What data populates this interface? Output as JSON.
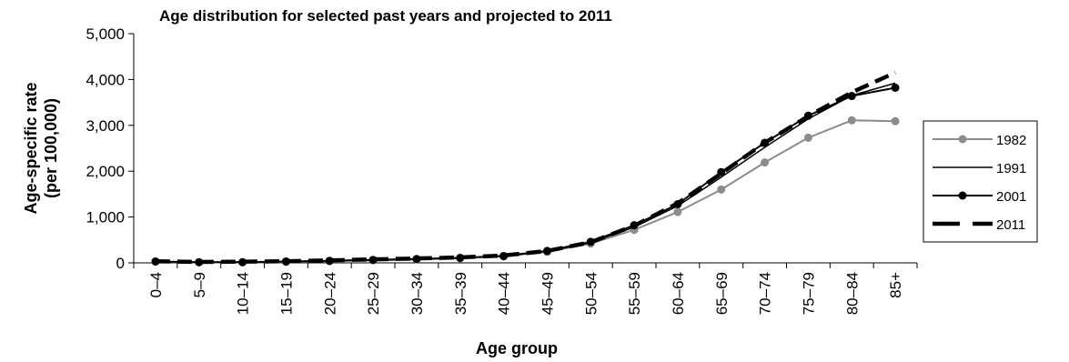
{
  "chart_data": {
    "type": "line",
    "title": "Age distribution for selected past years and projected to 2011",
    "xlabel": "Age group",
    "ylabel": "Age-specific rate",
    "ylabel_sub": "(per 100,000)",
    "categories": [
      "0–4",
      "5–9",
      "10–14",
      "15–19",
      "20–24",
      "25–29",
      "30–34",
      "35–39",
      "40–44",
      "45–49",
      "50–54",
      "55–59",
      "60–64",
      "65–69",
      "70–74",
      "75–79",
      "80–84",
      "85+"
    ],
    "ylim": [
      0,
      5000
    ],
    "yticks": [
      0,
      1000,
      2000,
      3000,
      4000,
      5000
    ],
    "ytick_labels": [
      "0",
      "1,000",
      "2,000",
      "3,000",
      "4,000",
      "5,000"
    ],
    "grid": false,
    "legend_position": "right",
    "series": [
      {
        "name": "1982",
        "color": "#8c8c8c",
        "style": "solid-markers",
        "values": [
          25,
          10,
          10,
          20,
          35,
          55,
          75,
          100,
          140,
          240,
          420,
          720,
          1110,
          1600,
          2190,
          2730,
          3110,
          3090
        ]
      },
      {
        "name": "1991",
        "color": "#000000",
        "style": "solid-thin",
        "values": [
          25,
          15,
          20,
          30,
          45,
          60,
          85,
          110,
          150,
          250,
          440,
          780,
          1240,
          1870,
          2520,
          3140,
          3650,
          3920
        ]
      },
      {
        "name": "2001",
        "color": "#000000",
        "style": "solid-markers",
        "values": [
          30,
          15,
          15,
          30,
          45,
          65,
          85,
          110,
          150,
          260,
          460,
          820,
          1280,
          1980,
          2620,
          3210,
          3640,
          3820
        ]
      },
      {
        "name": "2011",
        "color": "#000000",
        "style": "dashed-thick",
        "values": [
          35,
          20,
          25,
          35,
          55,
          75,
          95,
          120,
          160,
          260,
          450,
          810,
          1300,
          1950,
          2620,
          3200,
          3720,
          4150
        ]
      }
    ]
  }
}
